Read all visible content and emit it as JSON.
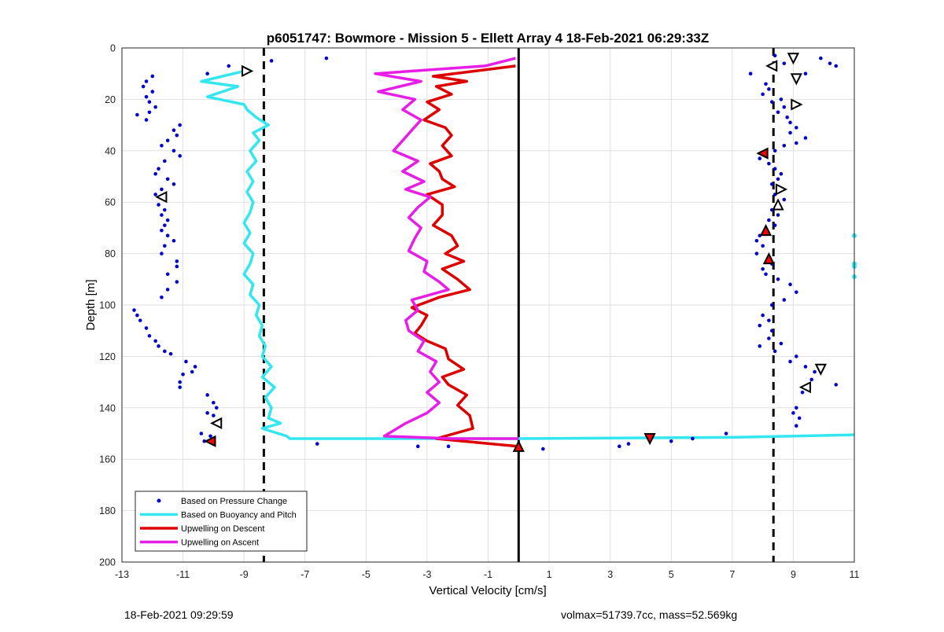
{
  "footer": {
    "timestamp": "18-Feb-2021 09:29:59",
    "stats": "volmax=51739.7cc, mass=52.569kg"
  },
  "chart_data": {
    "type": "scatter",
    "title": "p6051747: Bowmore - Mission 5 - Ellett Array 4 18-Feb-2021 06:29:33Z",
    "xlabel": "Vertical Velocity [cm/s]",
    "ylabel": "Depth [m]",
    "xlim": [
      -13,
      11
    ],
    "ylim": [
      0,
      200
    ],
    "y_reversed": true,
    "grid": true,
    "xticks": [
      -13,
      -11,
      -9,
      -7,
      -5,
      -3,
      -1,
      1,
      3,
      5,
      7,
      9,
      11
    ],
    "yticks": [
      0,
      20,
      40,
      60,
      80,
      100,
      120,
      140,
      160,
      180,
      200
    ],
    "legend": {
      "placement": "bottom-left",
      "entries": [
        {
          "label": "Based on Pressure Change",
          "color": "#0000cc",
          "style": "dot"
        },
        {
          "label": "Based on Buoyancy and Pitch",
          "color": "#33e6f0",
          "style": "line"
        },
        {
          "label": "Upwelling on Descent",
          "color": "#dd0000",
          "style": "line"
        },
        {
          "label": "Upwelling on Ascent",
          "color": "#e61ee6",
          "style": "line"
        }
      ]
    },
    "reference_lines": [
      {
        "x": -8.35,
        "style": "dashed",
        "color": "#000000"
      },
      {
        "x": 0,
        "style": "solid",
        "color": "#000000"
      },
      {
        "x": 8.35,
        "style": "dashed",
        "color": "#000000"
      }
    ],
    "series": [
      {
        "name": "Based on Pressure Change",
        "kind": "scatter",
        "color": "#0000cc",
        "points": [
          [
            -9.5,
            7
          ],
          [
            -10.2,
            10
          ],
          [
            -12,
            11
          ],
          [
            -12.2,
            13
          ],
          [
            -12.3,
            15
          ],
          [
            -12,
            17
          ],
          [
            -12.2,
            19
          ],
          [
            -12.1,
            21
          ],
          [
            -11.9,
            23
          ],
          [
            -12.1,
            25
          ],
          [
            -12.5,
            26
          ],
          [
            -12.2,
            28
          ],
          [
            -11.1,
            30
          ],
          [
            -11.3,
            32
          ],
          [
            -11.2,
            34
          ],
          [
            -11.5,
            36
          ],
          [
            -11.7,
            38
          ],
          [
            -11.3,
            40
          ],
          [
            -11.1,
            42
          ],
          [
            -11.6,
            44
          ],
          [
            -11.8,
            47
          ],
          [
            -11.9,
            49
          ],
          [
            -11.5,
            51
          ],
          [
            -11.3,
            53
          ],
          [
            -11.7,
            55
          ],
          [
            -11.9,
            57
          ],
          [
            -11.8,
            61
          ],
          [
            -11.6,
            63
          ],
          [
            -11.7,
            65
          ],
          [
            -11.5,
            67
          ],
          [
            -11.6,
            69
          ],
          [
            -11.7,
            71
          ],
          [
            -11.5,
            73
          ],
          [
            -11.3,
            75
          ],
          [
            -11.6,
            77
          ],
          [
            -11.7,
            80
          ],
          [
            -11.2,
            83
          ],
          [
            -11.2,
            85
          ],
          [
            -11.5,
            88
          ],
          [
            -11.2,
            91
          ],
          [
            -11.5,
            94
          ],
          [
            -11.7,
            97
          ],
          [
            -12.6,
            102
          ],
          [
            -12.5,
            104
          ],
          [
            -12.4,
            106
          ],
          [
            -12.2,
            109
          ],
          [
            -12.1,
            112
          ],
          [
            -11.9,
            114
          ],
          [
            -11.8,
            116
          ],
          [
            -11.6,
            118
          ],
          [
            -11.4,
            119
          ],
          [
            -10.9,
            122
          ],
          [
            -11.0,
            127
          ],
          [
            -11.1,
            130
          ],
          [
            -11.1,
            132
          ],
          [
            -10.6,
            124
          ],
          [
            -10.7,
            126
          ],
          [
            -10.2,
            135
          ],
          [
            -10.0,
            138
          ],
          [
            -9.9,
            140
          ],
          [
            -10.2,
            142
          ],
          [
            -10.0,
            143
          ],
          [
            -9.8,
            146
          ],
          [
            -10.4,
            150
          ],
          [
            -10.1,
            151
          ],
          [
            -10.3,
            153
          ],
          [
            -8.1,
            5
          ],
          [
            -6.3,
            4
          ],
          [
            -6.6,
            154
          ],
          [
            -3.3,
            155
          ],
          [
            -2.3,
            155
          ],
          [
            0.8,
            156
          ],
          [
            3.3,
            155
          ],
          [
            3.6,
            154
          ],
          [
            5.7,
            152
          ],
          [
            6.8,
            150
          ],
          [
            5.0,
            153
          ],
          [
            7.6,
            10
          ],
          [
            8.1,
            14
          ],
          [
            8.2,
            16
          ],
          [
            8.0,
            18
          ],
          [
            8.6,
            20
          ],
          [
            8.3,
            21
          ],
          [
            8.7,
            23
          ],
          [
            8.5,
            25
          ],
          [
            8.8,
            27
          ],
          [
            8.9,
            29
          ],
          [
            9.1,
            31
          ],
          [
            8.9,
            33
          ],
          [
            9.4,
            35
          ],
          [
            9.1,
            37
          ],
          [
            8.7,
            38
          ],
          [
            8.4,
            40
          ],
          [
            7.9,
            43
          ],
          [
            8.2,
            45
          ],
          [
            8.4,
            47
          ],
          [
            8.6,
            49
          ],
          [
            8.5,
            51
          ],
          [
            8.3,
            53
          ],
          [
            8.5,
            55
          ],
          [
            8.4,
            57
          ],
          [
            8.7,
            59
          ],
          [
            8.3,
            63
          ],
          [
            8.5,
            65
          ],
          [
            8.2,
            67
          ],
          [
            8.4,
            69
          ],
          [
            7.9,
            73
          ],
          [
            7.8,
            75
          ],
          [
            8.0,
            77
          ],
          [
            7.8,
            80
          ],
          [
            8.3,
            84
          ],
          [
            8.0,
            86
          ],
          [
            8.1,
            88
          ],
          [
            8.5,
            90
          ],
          [
            8.9,
            92
          ],
          [
            9.1,
            95
          ],
          [
            8.7,
            98
          ],
          [
            8.3,
            100
          ],
          [
            8.0,
            104
          ],
          [
            8.2,
            106
          ],
          [
            7.9,
            108
          ],
          [
            8.3,
            110
          ],
          [
            8.2,
            113
          ],
          [
            8.6,
            115
          ],
          [
            7.9,
            116
          ],
          [
            8.4,
            118
          ],
          [
            9.1,
            120
          ],
          [
            8.9,
            122
          ],
          [
            9.4,
            124
          ],
          [
            9.7,
            126
          ],
          [
            9.6,
            129
          ],
          [
            10.4,
            131
          ],
          [
            9.3,
            134
          ],
          [
            9.1,
            140
          ],
          [
            9.0,
            142
          ],
          [
            9.2,
            144
          ],
          [
            9.1,
            147
          ],
          [
            8.4,
            3
          ],
          [
            8.7,
            6
          ],
          [
            9.4,
            10
          ],
          [
            10.2,
            6
          ],
          [
            9.9,
            4
          ],
          [
            10.4,
            7
          ]
        ]
      },
      {
        "name": "Based on Buoyancy and Pitch",
        "kind": "line",
        "color": "#33e6f0",
        "points": [
          [
            -9.0,
            9
          ],
          [
            -10.4,
            13
          ],
          [
            -9.2,
            15
          ],
          [
            -10.2,
            19
          ],
          [
            -9.0,
            22
          ],
          [
            -8.9,
            24
          ],
          [
            -8.6,
            27
          ],
          [
            -8.2,
            30
          ],
          [
            -8.7,
            33
          ],
          [
            -8.5,
            36
          ],
          [
            -8.8,
            40
          ],
          [
            -8.6,
            44
          ],
          [
            -8.9,
            48
          ],
          [
            -8.7,
            52
          ],
          [
            -8.9,
            56
          ],
          [
            -8.7,
            60
          ],
          [
            -8.8,
            64
          ],
          [
            -9.0,
            68
          ],
          [
            -8.8,
            72
          ],
          [
            -9.0,
            76
          ],
          [
            -8.7,
            80
          ],
          [
            -8.8,
            84
          ],
          [
            -9.0,
            88
          ],
          [
            -8.7,
            92
          ],
          [
            -8.8,
            96
          ],
          [
            -8.5,
            100
          ],
          [
            -8.6,
            104
          ],
          [
            -8.4,
            108
          ],
          [
            -8.5,
            112
          ],
          [
            -8.3,
            116
          ],
          [
            -8.4,
            120
          ],
          [
            -8.1,
            124
          ],
          [
            -8.4,
            128
          ],
          [
            -8.0,
            132
          ],
          [
            -8.3,
            136
          ],
          [
            -8.1,
            140
          ],
          [
            -8.2,
            144
          ],
          [
            -7.8,
            146
          ],
          [
            -8.4,
            148
          ],
          [
            -7.6,
            151
          ],
          [
            -7.5,
            152
          ],
          [
            0,
            152
          ],
          [
            7,
            151.5
          ],
          [
            11,
            150.5
          ]
        ]
      },
      {
        "name": "Upwelling on Descent",
        "kind": "line",
        "color": "#dd0000",
        "points": [
          [
            -0.1,
            7
          ],
          [
            -2.8,
            11
          ],
          [
            -1.7,
            13
          ],
          [
            -2.7,
            15
          ],
          [
            -2.2,
            18
          ],
          [
            -3.0,
            21
          ],
          [
            -2.6,
            24
          ],
          [
            -3.1,
            28
          ],
          [
            -2.4,
            31
          ],
          [
            -2.2,
            34
          ],
          [
            -2.5,
            38
          ],
          [
            -2.2,
            42
          ],
          [
            -2.9,
            45
          ],
          [
            -2.6,
            48
          ],
          [
            -2.5,
            51
          ],
          [
            -2.1,
            54
          ],
          [
            -3.0,
            57
          ],
          [
            -2.5,
            61
          ],
          [
            -2.5,
            65
          ],
          [
            -2.8,
            69
          ],
          [
            -2.2,
            73
          ],
          [
            -2.0,
            77
          ],
          [
            -2.4,
            80
          ],
          [
            -1.8,
            83
          ],
          [
            -2.5,
            86
          ],
          [
            -2.0,
            90
          ],
          [
            -1.6,
            94
          ],
          [
            -2.6,
            97
          ],
          [
            -3.5,
            101
          ],
          [
            -3.0,
            104
          ],
          [
            -3.2,
            108
          ],
          [
            -3.4,
            111
          ],
          [
            -3.0,
            114
          ],
          [
            -2.4,
            117
          ],
          [
            -2.3,
            121
          ],
          [
            -1.8,
            125
          ],
          [
            -2.5,
            128
          ],
          [
            -2.3,
            131
          ],
          [
            -1.7,
            135
          ],
          [
            -2.0,
            139
          ],
          [
            -1.6,
            143
          ],
          [
            -1.5,
            148
          ],
          [
            -2.7,
            152
          ],
          [
            0,
            155
          ]
        ]
      },
      {
        "name": "Upwelling on Ascent",
        "kind": "line",
        "color": "#e61ee6",
        "points": [
          [
            -0.1,
            4
          ],
          [
            -1.1,
            7
          ],
          [
            -4.7,
            10
          ],
          [
            -3.2,
            13
          ],
          [
            -4.6,
            17
          ],
          [
            -3.4,
            20
          ],
          [
            -3.8,
            24
          ],
          [
            -3.2,
            28
          ],
          [
            -3.5,
            32
          ],
          [
            -3.8,
            36
          ],
          [
            -4.1,
            40
          ],
          [
            -3.3,
            44
          ],
          [
            -3.8,
            48
          ],
          [
            -3.1,
            52
          ],
          [
            -3.7,
            55
          ],
          [
            -2.9,
            58
          ],
          [
            -3.3,
            62
          ],
          [
            -3.6,
            66
          ],
          [
            -3.2,
            70
          ],
          [
            -3.4,
            74
          ],
          [
            -3.6,
            79
          ],
          [
            -3.0,
            83
          ],
          [
            -3.1,
            87
          ],
          [
            -2.6,
            91
          ],
          [
            -2.3,
            94
          ],
          [
            -3.5,
            98
          ],
          [
            -3.3,
            102
          ],
          [
            -3.7,
            106
          ],
          [
            -3.6,
            110
          ],
          [
            -3.1,
            114
          ],
          [
            -3.3,
            118
          ],
          [
            -2.7,
            122
          ],
          [
            -2.9,
            126
          ],
          [
            -2.6,
            130
          ],
          [
            -3.0,
            134
          ],
          [
            -2.6,
            138
          ],
          [
            -3.0,
            142
          ],
          [
            -3.7,
            146
          ],
          [
            -4.4,
            151
          ],
          [
            -2.2,
            152
          ],
          [
            0,
            152
          ]
        ]
      }
    ],
    "markers": [
      {
        "x": -8.9,
        "y": 9,
        "dir": "right",
        "fill": "#ffffff"
      },
      {
        "x": -11.7,
        "y": 58,
        "dir": "left",
        "fill": "#ffffff"
      },
      {
        "x": -9.9,
        "y": 146,
        "dir": "left",
        "fill": "#ffffff"
      },
      {
        "x": -10.1,
        "y": 153,
        "dir": "left",
        "fill": "#ff0000"
      },
      {
        "x": 9.0,
        "y": 4,
        "dir": "down",
        "fill": "#ffffff"
      },
      {
        "x": 8.3,
        "y": 7,
        "dir": "left",
        "fill": "#ffffff"
      },
      {
        "x": 9.1,
        "y": 12,
        "dir": "down",
        "fill": "#ffffff"
      },
      {
        "x": 9.1,
        "y": 22,
        "dir": "right",
        "fill": "#ffffff"
      },
      {
        "x": 8.0,
        "y": 41,
        "dir": "left",
        "fill": "#ff0000"
      },
      {
        "x": 8.6,
        "y": 55,
        "dir": "right",
        "fill": "#ffffff"
      },
      {
        "x": 8.5,
        "y": 61,
        "dir": "up",
        "fill": "#ffffff"
      },
      {
        "x": 8.1,
        "y": 71,
        "dir": "up",
        "fill": "#ff0000"
      },
      {
        "x": 8.2,
        "y": 82,
        "dir": "up",
        "fill": "#ff0000"
      },
      {
        "x": 9.9,
        "y": 125,
        "dir": "down",
        "fill": "#ffffff"
      },
      {
        "x": 9.4,
        "y": 132,
        "dir": "left",
        "fill": "#ffffff"
      },
      {
        "x": 4.3,
        "y": 152,
        "dir": "down",
        "fill": "#ff0000"
      },
      {
        "x": 0,
        "y": 155,
        "dir": "up",
        "fill": "#ff0000"
      }
    ],
    "edge_points": [
      {
        "x": 11,
        "y": 73
      },
      {
        "x": 11,
        "y": 84
      },
      {
        "x": 11,
        "y": 85
      },
      {
        "x": 11,
        "y": 89
      }
    ]
  }
}
